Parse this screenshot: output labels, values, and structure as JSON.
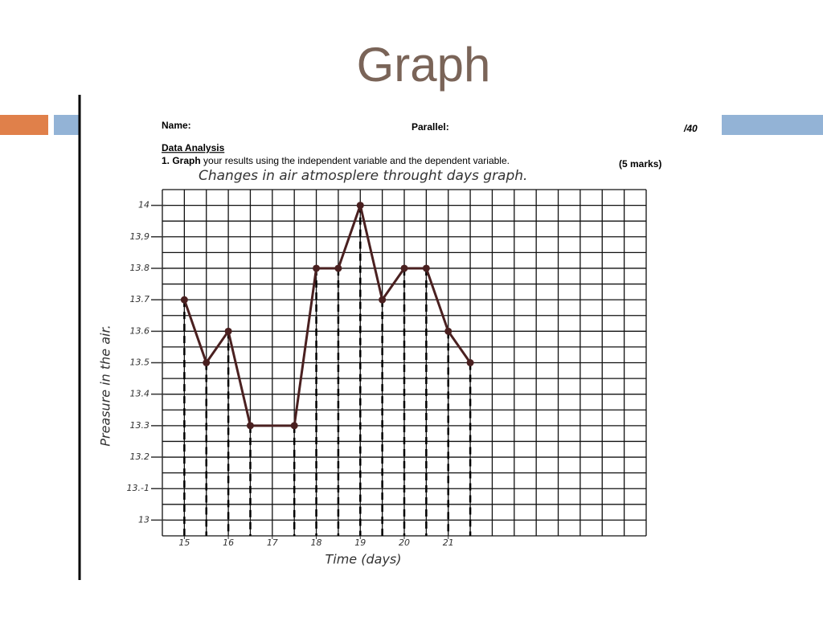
{
  "chart_data": {
    "type": "line",
    "title": "Graph",
    "header": {
      "name": "Name:",
      "parallel": "Parallel:",
      "score": "/40",
      "section": "Data Analysis",
      "instruction_bold": "1. Graph",
      "instruction": "your results using the independent variable and the dependent variable.",
      "marks": "(5 marks)"
    },
    "subtitle": "Changes in air atmosplere throught days graph.",
    "y_label": "Preasure in the air.",
    "x_label": "Time (days)",
    "x": [
      15,
      15.5,
      16,
      16.5,
      17.5,
      18,
      18.5,
      19,
      19.5,
      20,
      20.5,
      21,
      21.5
    ],
    "series": [
      {
        "color": "#4a2020",
        "values": [
          13.7,
          13.5,
          13.6,
          13.3,
          13.3,
          13.8,
          13.8,
          14,
          13.7,
          13.8,
          13.8,
          13.6,
          13.5
        ]
      }
    ],
    "xlim": [
      14.5,
      25.5
    ],
    "ylim": [
      12.95,
      14.05
    ],
    "xticks": [
      15,
      16,
      17,
      18,
      19,
      20,
      21
    ],
    "yticks": [
      13,
      {
        "value": 13.1,
        "label": "13.-1"
      },
      13.2,
      13.3,
      13.4,
      13.5,
      13.6,
      13.7,
      13.8,
      {
        "value": 13.9,
        "label": "13,9"
      },
      14
    ],
    "grid": true
  }
}
